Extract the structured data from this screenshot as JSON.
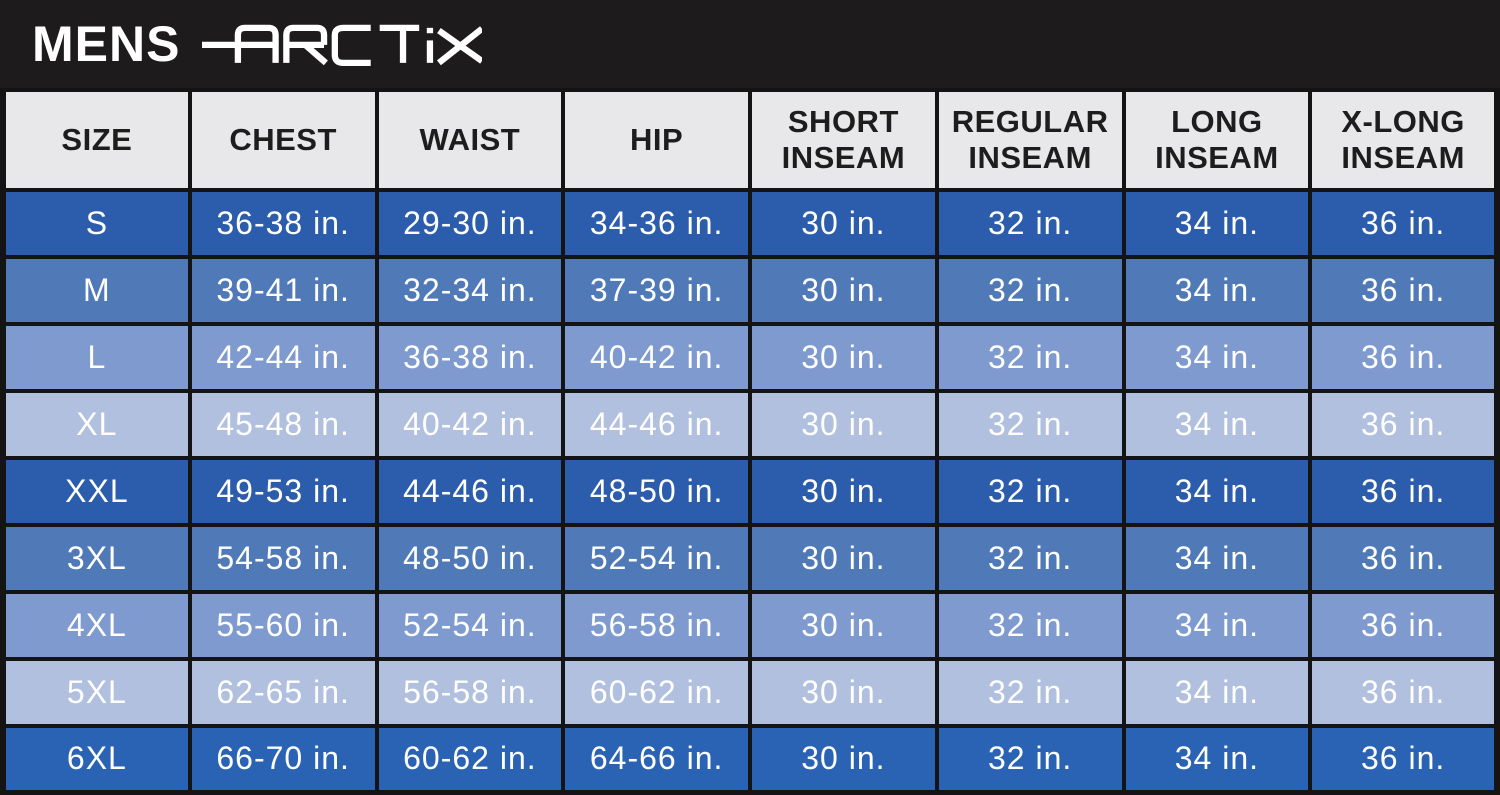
{
  "banner": {
    "title": "MENS",
    "brand": "ARCTIX",
    "background": "#1d1b1b",
    "text_color": "#ffffff"
  },
  "colors": {
    "border": "#141414",
    "header_bg": "#e8e8ea",
    "header_text": "#1d1d1d",
    "cell_text": "#ffffff",
    "row_shades": [
      "#2b5dac",
      "#5079b8",
      "#7e9ace",
      "#b1c0df",
      "#2a63b3"
    ]
  },
  "chart_data": {
    "type": "table",
    "title": "MENS ARCTIX Size Chart",
    "columns": [
      "SIZE",
      "CHEST",
      "WAIST",
      "HIP",
      "SHORT\nINSEAM",
      "REGULAR\nINSEAM",
      "LONG\nINSEAM",
      "X-LONG\nINSEAM"
    ],
    "rows": [
      {
        "shade": 0,
        "cells": [
          "S",
          "36-38 in.",
          "29-30 in.",
          "34-36 in.",
          "30 in.",
          "32 in.",
          "34 in.",
          "36 in."
        ]
      },
      {
        "shade": 1,
        "cells": [
          "M",
          "39-41 in.",
          "32-34 in.",
          "37-39 in.",
          "30 in.",
          "32 in.",
          "34 in.",
          "36 in."
        ]
      },
      {
        "shade": 2,
        "cells": [
          "L",
          "42-44 in.",
          "36-38 in.",
          "40-42 in.",
          "30 in.",
          "32 in.",
          "34 in.",
          "36 in."
        ]
      },
      {
        "shade": 3,
        "cells": [
          "XL",
          "45-48 in.",
          "40-42 in.",
          "44-46 in.",
          "30 in.",
          "32 in.",
          "34 in.",
          "36 in."
        ]
      },
      {
        "shade": 0,
        "cells": [
          "XXL",
          "49-53 in.",
          "44-46 in.",
          "48-50 in.",
          "30 in.",
          "32 in.",
          "34 in.",
          "36 in."
        ]
      },
      {
        "shade": 1,
        "cells": [
          "3XL",
          "54-58 in.",
          "48-50 in.",
          "52-54 in.",
          "30 in.",
          "32 in.",
          "34 in.",
          "36 in."
        ]
      },
      {
        "shade": 2,
        "cells": [
          "4XL",
          "55-60 in.",
          "52-54 in.",
          "56-58 in.",
          "30 in.",
          "32 in.",
          "34 in.",
          "36 in."
        ]
      },
      {
        "shade": 3,
        "cells": [
          "5XL",
          "62-65 in.",
          "56-58 in.",
          "60-62 in.",
          "30 in.",
          "32 in.",
          "34 in.",
          "36 in."
        ]
      },
      {
        "shade": 4,
        "cells": [
          "6XL",
          "66-70 in.",
          "60-62 in.",
          "64-66 in.",
          "30 in.",
          "32 in.",
          "34 in.",
          "36 in."
        ]
      }
    ]
  }
}
